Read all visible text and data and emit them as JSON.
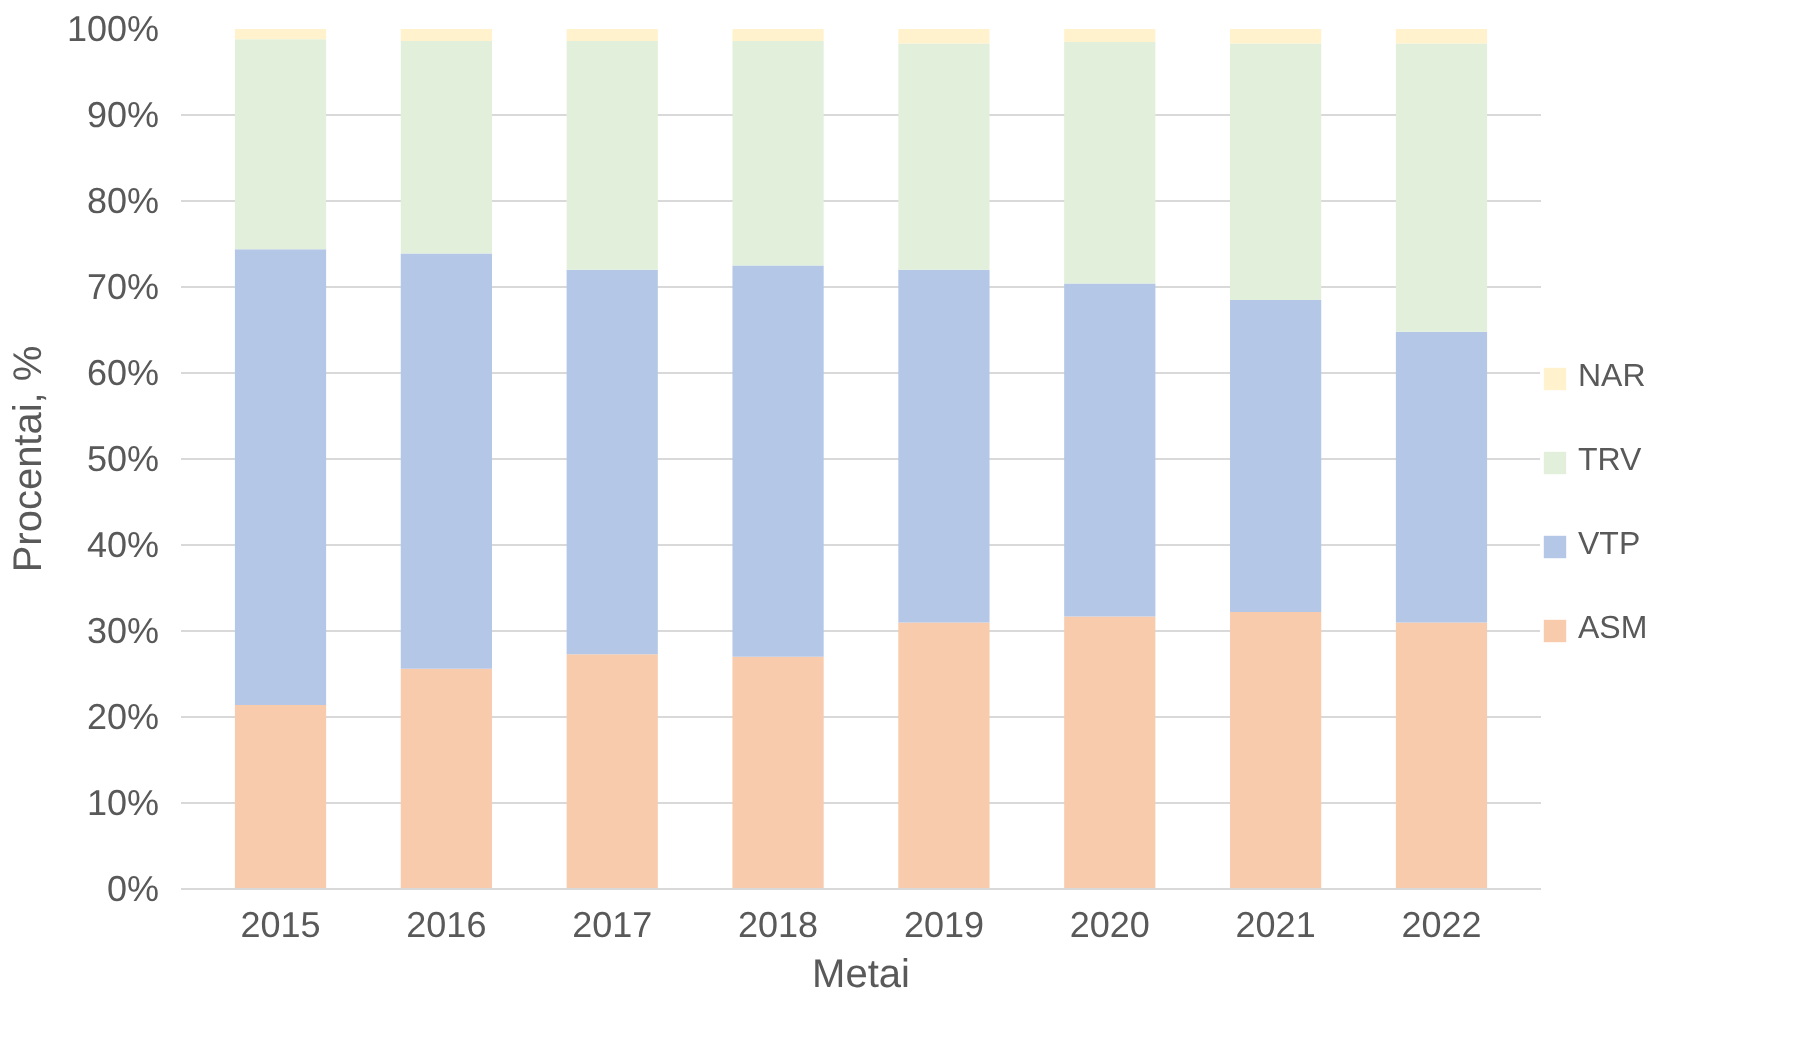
{
  "chart_data": {
    "type": "bar",
    "stacked": true,
    "xlabel": "Metai",
    "ylabel": "Procentai, %",
    "categories": [
      "2015",
      "2016",
      "2017",
      "2018",
      "2019",
      "2020",
      "2021",
      "2022"
    ],
    "series": [
      {
        "name": "ASM",
        "color": "#f8cbad",
        "values": [
          21.4,
          25.6,
          27.3,
          27.0,
          31.0,
          31.7,
          32.2,
          31.0
        ]
      },
      {
        "name": "VTP",
        "color": "#b4c7e7",
        "values": [
          53.0,
          48.3,
          44.7,
          45.5,
          41.0,
          38.7,
          36.3,
          33.8
        ]
      },
      {
        "name": "TRV",
        "color": "#e2efda",
        "values": [
          24.4,
          24.7,
          26.6,
          26.1,
          26.3,
          28.1,
          29.8,
          33.5
        ]
      },
      {
        "name": "NAR",
        "color": "#fff2cc",
        "values": [
          1.2,
          1.4,
          1.4,
          1.4,
          1.7,
          1.5,
          1.7,
          1.7
        ]
      }
    ],
    "ylim": [
      0,
      100
    ],
    "yticks": [
      {
        "value": 0,
        "label": "0%"
      },
      {
        "value": 10,
        "label": "10%"
      },
      {
        "value": 20,
        "label": "20%"
      },
      {
        "value": 30,
        "label": "30%"
      },
      {
        "value": 40,
        "label": "40%"
      },
      {
        "value": 50,
        "label": "50%"
      },
      {
        "value": 60,
        "label": "60%"
      },
      {
        "value": 70,
        "label": "70%"
      },
      {
        "value": 80,
        "label": "80%"
      },
      {
        "value": 90,
        "label": "90%"
      },
      {
        "value": 100,
        "label": "100%"
      }
    ],
    "grid": "y",
    "legend": "right"
  }
}
